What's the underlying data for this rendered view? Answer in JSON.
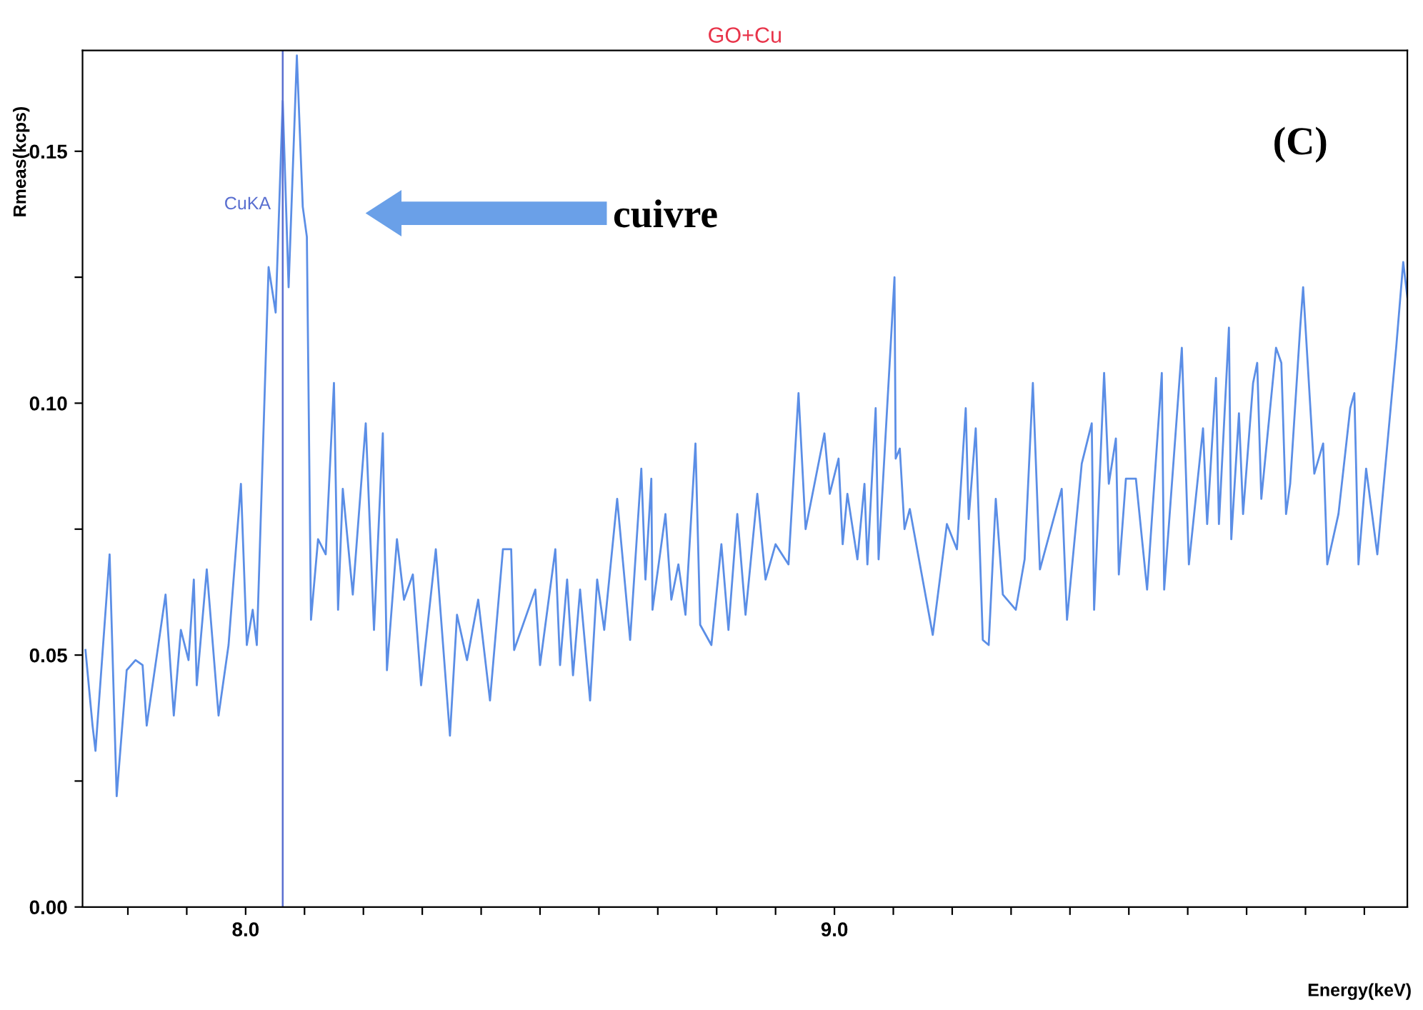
{
  "chart_data": {
    "type": "line",
    "title": "GO+Cu",
    "xlabel": "Energy(keV)",
    "ylabel": "Rmeas(kcps)",
    "xlim": [
      7.723,
      9.973
    ],
    "ylim": [
      0,
      0.17
    ],
    "xticks": [
      {
        "value": 7.8,
        "label": null
      },
      {
        "value": 7.9,
        "label": null
      },
      {
        "value": 8.0,
        "label": "8.0"
      },
      {
        "value": 8.1,
        "label": null
      },
      {
        "value": 8.2,
        "label": null
      },
      {
        "value": 8.3,
        "label": null
      },
      {
        "value": 8.4,
        "label": null
      },
      {
        "value": 8.5,
        "label": null
      },
      {
        "value": 8.6,
        "label": null
      },
      {
        "value": 8.7,
        "label": null
      },
      {
        "value": 8.8,
        "label": null
      },
      {
        "value": 8.9,
        "label": null
      },
      {
        "value": 9.0,
        "label": "9.0"
      },
      {
        "value": 9.1,
        "label": null
      },
      {
        "value": 9.2,
        "label": null
      },
      {
        "value": 9.3,
        "label": null
      },
      {
        "value": 9.4,
        "label": null
      },
      {
        "value": 9.5,
        "label": null
      },
      {
        "value": 9.6,
        "label": null
      },
      {
        "value": 9.7,
        "label": null
      },
      {
        "value": 9.8,
        "label": null
      },
      {
        "value": 9.9,
        "label": null
      }
    ],
    "yticks": [
      {
        "value": 0,
        "label": "0.00"
      },
      {
        "value": 0.025,
        "label": null
      },
      {
        "value": 0.05,
        "label": "0.05"
      },
      {
        "value": 0.075,
        "label": null
      },
      {
        "value": 0.1,
        "label": "0.10"
      },
      {
        "value": 0.125,
        "label": null
      },
      {
        "value": 0.15,
        "label": "0.15"
      }
    ],
    "grid": false,
    "marker": "none",
    "line_style": "solid",
    "ref_lines": [
      {
        "axis": "x",
        "value": 8.063,
        "label": "CuKA",
        "color": "#5a6fd0"
      }
    ],
    "annotations": [
      "cuivre",
      "(C)"
    ],
    "series": [
      {
        "color": "#5b8ee6",
        "x": [
          7.728,
          7.74,
          7.745,
          7.769,
          7.781,
          7.798,
          7.813,
          7.825,
          7.832,
          7.864,
          7.878,
          7.89,
          7.903,
          7.912,
          7.917,
          7.934,
          7.954,
          7.971,
          7.992,
          8.002,
          8.012,
          8.019,
          8.039,
          8.051,
          8.063,
          8.073,
          8.087,
          8.097,
          8.104,
          8.111,
          8.123,
          8.136,
          8.15,
          8.157,
          8.165,
          8.182,
          8.204,
          8.218,
          8.233,
          8.24,
          8.257,
          8.269,
          8.284,
          8.298,
          8.323,
          8.347,
          8.359,
          8.376,
          8.395,
          8.415,
          8.437,
          8.451,
          8.456,
          8.492,
          8.5,
          8.526,
          8.534,
          8.546,
          8.556,
          8.568,
          8.585,
          8.597,
          8.609,
          8.631,
          8.653,
          8.672,
          8.679,
          8.689,
          8.691,
          8.713,
          8.723,
          8.735,
          8.747,
          8.764,
          8.772,
          8.791,
          8.808,
          8.82,
          8.835,
          8.849,
          8.869,
          8.883,
          8.9,
          8.922,
          8.939,
          8.951,
          8.983,
          8.992,
          9.007,
          9.014,
          9.022,
          9.039,
          9.051,
          9.056,
          9.07,
          9.075,
          9.102,
          9.104,
          9.111,
          9.119,
          9.128,
          9.167,
          9.191,
          9.208,
          9.223,
          9.228,
          9.24,
          9.252,
          9.262,
          9.274,
          9.286,
          9.308,
          9.323,
          9.337,
          9.349,
          9.386,
          9.395,
          9.42,
          9.437,
          9.441,
          9.458,
          9.466,
          9.478,
          9.483,
          9.495,
          9.512,
          9.531,
          9.556,
          9.56,
          9.59,
          9.602,
          9.626,
          9.633,
          9.648,
          9.653,
          9.67,
          9.674,
          9.687,
          9.694,
          9.711,
          9.718,
          9.725,
          9.75,
          9.759,
          9.767,
          9.774,
          9.791,
          9.796,
          9.815,
          9.83,
          9.837,
          9.856,
          9.876,
          9.883,
          9.89,
          9.903,
          9.922,
          9.954,
          9.966,
          9.973
        ],
        "values": [
          0.051,
          0.036,
          0.031,
          0.07,
          0.022,
          0.047,
          0.049,
          0.048,
          0.036,
          0.062,
          0.038,
          0.055,
          0.049,
          0.065,
          0.044,
          0.067,
          0.038,
          0.052,
          0.084,
          0.052,
          0.059,
          0.052,
          0.127,
          0.118,
          0.16,
          0.123,
          0.169,
          0.139,
          0.133,
          0.057,
          0.073,
          0.07,
          0.104,
          0.059,
          0.083,
          0.062,
          0.096,
          0.055,
          0.094,
          0.047,
          0.073,
          0.061,
          0.066,
          0.044,
          0.071,
          0.034,
          0.058,
          0.049,
          0.061,
          0.041,
          0.071,
          0.071,
          0.051,
          0.063,
          0.048,
          0.071,
          0.048,
          0.065,
          0.046,
          0.063,
          0.041,
          0.065,
          0.055,
          0.081,
          0.053,
          0.087,
          0.065,
          0.085,
          0.059,
          0.078,
          0.061,
          0.068,
          0.058,
          0.092,
          0.056,
          0.052,
          0.072,
          0.055,
          0.078,
          0.058,
          0.082,
          0.065,
          0.072,
          0.068,
          0.102,
          0.075,
          0.094,
          0.082,
          0.089,
          0.072,
          0.082,
          0.069,
          0.084,
          0.068,
          0.099,
          0.069,
          0.125,
          0.089,
          0.091,
          0.075,
          0.079,
          0.054,
          0.076,
          0.071,
          0.099,
          0.077,
          0.095,
          0.053,
          0.052,
          0.081,
          0.062,
          0.059,
          0.069,
          0.104,
          0.067,
          0.083,
          0.057,
          0.088,
          0.096,
          0.059,
          0.106,
          0.084,
          0.093,
          0.066,
          0.085,
          0.085,
          0.063,
          0.106,
          0.063,
          0.111,
          0.068,
          0.095,
          0.076,
          0.105,
          0.076,
          0.115,
          0.073,
          0.098,
          0.078,
          0.104,
          0.108,
          0.081,
          0.111,
          0.108,
          0.078,
          0.084,
          0.115,
          0.123,
          0.086,
          0.092,
          0.068,
          0.078,
          0.099,
          0.102,
          0.068,
          0.087,
          0.07,
          0.111,
          0.128,
          0.121
        ]
      }
    ]
  }
}
